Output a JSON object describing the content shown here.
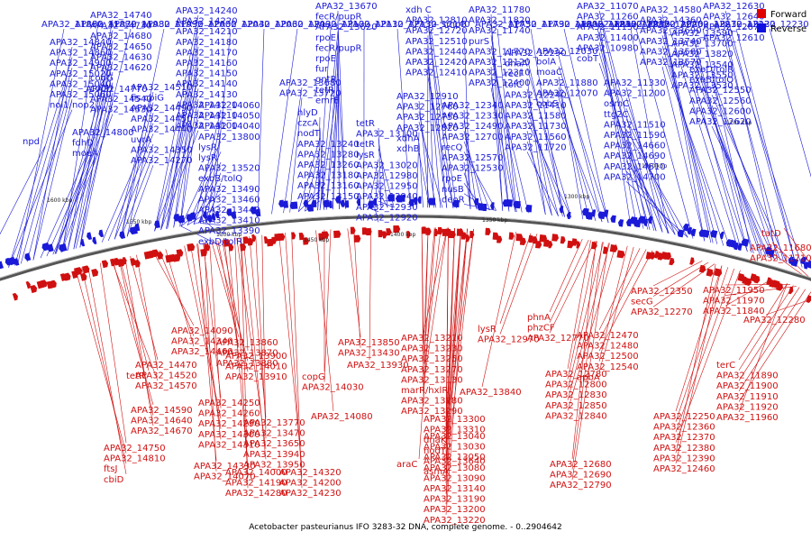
{
  "caption": "Acetobacter pasteurianus IFO 3283-32 DNA, complete genome. - 0..2904642",
  "legend": [
    {
      "label": "Forward",
      "color": "#e00000"
    },
    {
      "label": "Reverse",
      "color": "#1010e0"
    }
  ],
  "colors": {
    "forward": "#d01010",
    "reverse": "#1a1ad8",
    "backbone": "#555555"
  },
  "ticks": [
    "1600 kbp",
    "1550 kbp",
    "1500 kbp",
    "1450 kbp",
    "1400 kbp",
    "1350 kbp",
    "1300 kbp",
    "1250 kbp",
    "1200 kbp"
  ],
  "reverse_labels": [
    "npd",
    "APA32_14800",
    "fdhD",
    "moeA",
    "APA32_14840",
    "APA32_14860",
    "APA32_14900",
    "APA32_15020",
    "APA32_15040",
    "APA32_15060",
    "nol1/nop2",
    "APA32_14770",
    "APA32_14740",
    "APA32_14730",
    "APA32_14680",
    "APA32_14650",
    "APA32_14630",
    "APA32_14620",
    "cobG",
    "cobH",
    "APA32_14540",
    "APA32_14530",
    "APA32_14510",
    "fis cbiG",
    "APA32_14490",
    "APA32_14450",
    "APA32_14440",
    "uvrA",
    "APA32_14350",
    "APA32_14270",
    "APA32_14240",
    "APA32_14220",
    "APA32_14210",
    "APA32_14180",
    "APA32_14170",
    "APA32_14160",
    "APA32_14150",
    "APA32_14140",
    "APA32_14130",
    "APA32_14120",
    "APA32_14110",
    "APA32_14100",
    "APA32_14060",
    "APA32_14050",
    "APA32_14040",
    "APA32_13800",
    "lysR",
    "lysR",
    "APA32_13520",
    "exbB/tolQ",
    "APA32_13490",
    "APA32_13460",
    "APA32_13440",
    "APA32_13410",
    "APA32_13390",
    "exbD/tolR",
    "APA32_13680",
    "APA32_13720",
    "APA32_13670",
    "fecR/pupR",
    "APA32_13620",
    "rpoE",
    "fecR/pupR",
    "rpoE",
    "fur",
    "gntR",
    "tetR",
    "emrE",
    "hlyD",
    "czcA",
    "nodT",
    "APA32_13240",
    "APA32_13280",
    "APA32_13260",
    "APA32_13180",
    "APA32_13160",
    "APA32_13150",
    "tetR",
    "APA32_13100",
    "tetR",
    "lysR",
    "APA32_13020",
    "APA32_12980",
    "APA32_12950",
    "APA32_12940",
    "APA32_12930",
    "APA32_12920",
    "APA32_12910",
    "APA32_12760",
    "APA32_12750",
    "APA32_12820",
    "xdhA",
    "xdhB",
    "xdh C",
    "APA32_12810",
    "APA32_12720",
    "APA32_12510",
    "APA32_12440",
    "APA32_12420",
    "APA32_12410",
    "APA32_12340",
    "APA32_12330",
    "APA32_12490",
    "APA32_12700",
    "recQ",
    "APA32_12570",
    "APA32_12530",
    "rpoE",
    "nusB",
    "deoR",
    "APA32_11780",
    "APA32_11820",
    "APA32_11740",
    "purS",
    "APA32_11770",
    "APA32_12120",
    "APA32_12310",
    "APA32_12400",
    "APA32_12290",
    "dnaA",
    "recF",
    "tolC",
    "APA32_12240",
    "APA32_11410",
    "APA32_11580",
    "APA32_11730",
    "APA32_11560",
    "APA32_11720",
    "APA32_12030",
    "bolA",
    "moaC",
    "APA32_11880",
    "APA32_12070",
    "cobS",
    "APA32_11070",
    "APA32_11260",
    "APA32_11150",
    "APA32_11400",
    "APA32_10980",
    "cobT",
    "APA32_11330",
    "APA32_11200",
    "osmC",
    "ttg2C",
    "APA32_11510",
    "APA32_11590",
    "APA32_14660",
    "APA32_14690",
    "APA32_14610",
    "APA32_14700",
    "APA32_14580",
    "APA32_14360",
    "APA32_13690",
    "APA32_13740",
    "APA32_13560",
    "APA32_13570",
    "APA32_13590",
    "APA32_13700",
    "APA32_13820",
    "APA32_13540",
    "APA32_13550",
    "APA32_13530",
    "exbD/tolR",
    "exbB/tolQ",
    "APA32_12550",
    "APA32_12560",
    "APA32_12600",
    "APA32_12620",
    "APA32_12630",
    "APA32_12640",
    "APA32_12670",
    "APA32_12610",
    "APA32_12180",
    "APA32_12170",
    "APA32_12200",
    "APA32_12210",
    "APA32_12220",
    "APA32_12230",
    "APA32_11860",
    "APA32_11870",
    "APA32_11980",
    "APA32_11990",
    "APA32_12000",
    "APA32_12040",
    "APA32_12060",
    "APA32_12090",
    "APA32_12100",
    "APA32_12110",
    "APA32_12130",
    "APA32_12140",
    "smpB",
    "APA32_11750",
    "APA32_11790",
    "APA32_11800",
    "APA32_11830",
    "APA32_11930",
    "APA32_12020"
  ],
  "forward_labels": [
    "tatD",
    "APA32_11680",
    "APA32_11710",
    "APA32_11950",
    "APA32_11970",
    "APA32_11840",
    "APA32_12280",
    "APA32_12350",
    "secG",
    "APA32_12270",
    "terC",
    "APA32_11890",
    "APA32_11900",
    "APA32_11910",
    "APA32_11920",
    "APA32_11960",
    "APA32_12250",
    "APA32_12360",
    "APA32_12370",
    "APA32_12380",
    "APA32_12390",
    "APA32_12460",
    "APA32_12470",
    "APA32_12480",
    "APA32_12500",
    "APA32_12540",
    "apbA",
    "phnA",
    "phzCF",
    "APA32_12770",
    "APA32_12780",
    "APA32_12800",
    "APA32_12830",
    "APA32_12850",
    "APA32_12840",
    "APA32_12680",
    "APA32_12690",
    "APA32_12790",
    "lysR",
    "APA32_12970",
    "APA32_13040",
    "APA32_13030",
    "APA32_13050",
    "APA32_13080",
    "APA32_13090",
    "APA32_13140",
    "APA32_13190",
    "APA32_13200",
    "APA32_13220",
    "APA32_13210",
    "APA32_13230",
    "APA32_13250",
    "APA32_13270",
    "APA32_13130",
    "marR/hxlR",
    "APA32_13280",
    "APA32_13290",
    "APA32_13300",
    "APA32_13310",
    "dnaK",
    "nodT",
    "APA32_13640",
    "asmA",
    "araC",
    "APA32_13840",
    "APA32_13850",
    "APA32_13430",
    "APA32_13930",
    "copG",
    "APA32_14030",
    "APA32_14080",
    "APA32_13860",
    "APA32_13870",
    "APA32_13880",
    "APA32_13900",
    "APA32_14010",
    "APA32_13910",
    "APA32_13770",
    "APA32_13470",
    "APA32_13650",
    "APA32_13940",
    "APA32_13950",
    "APA32_14000",
    "APA32_14190",
    "APA32_14280",
    "APA32_14320",
    "APA32_14200",
    "APA32_14230",
    "APA32_14250",
    "APA32_14260",
    "APA32_14290",
    "APA32_14300",
    "APA32_14310",
    "APA32_14330",
    "APA32_14070",
    "APA32_14090",
    "APA32_14340",
    "APA32_14460",
    "APA32_14470",
    "APA32_14520",
    "APA32_14570",
    "APA32_14590",
    "APA32_14640",
    "APA32_14670",
    "APA32_14750",
    "APA32_14810",
    "ftsJ",
    "cbiD",
    "tetR"
  ]
}
